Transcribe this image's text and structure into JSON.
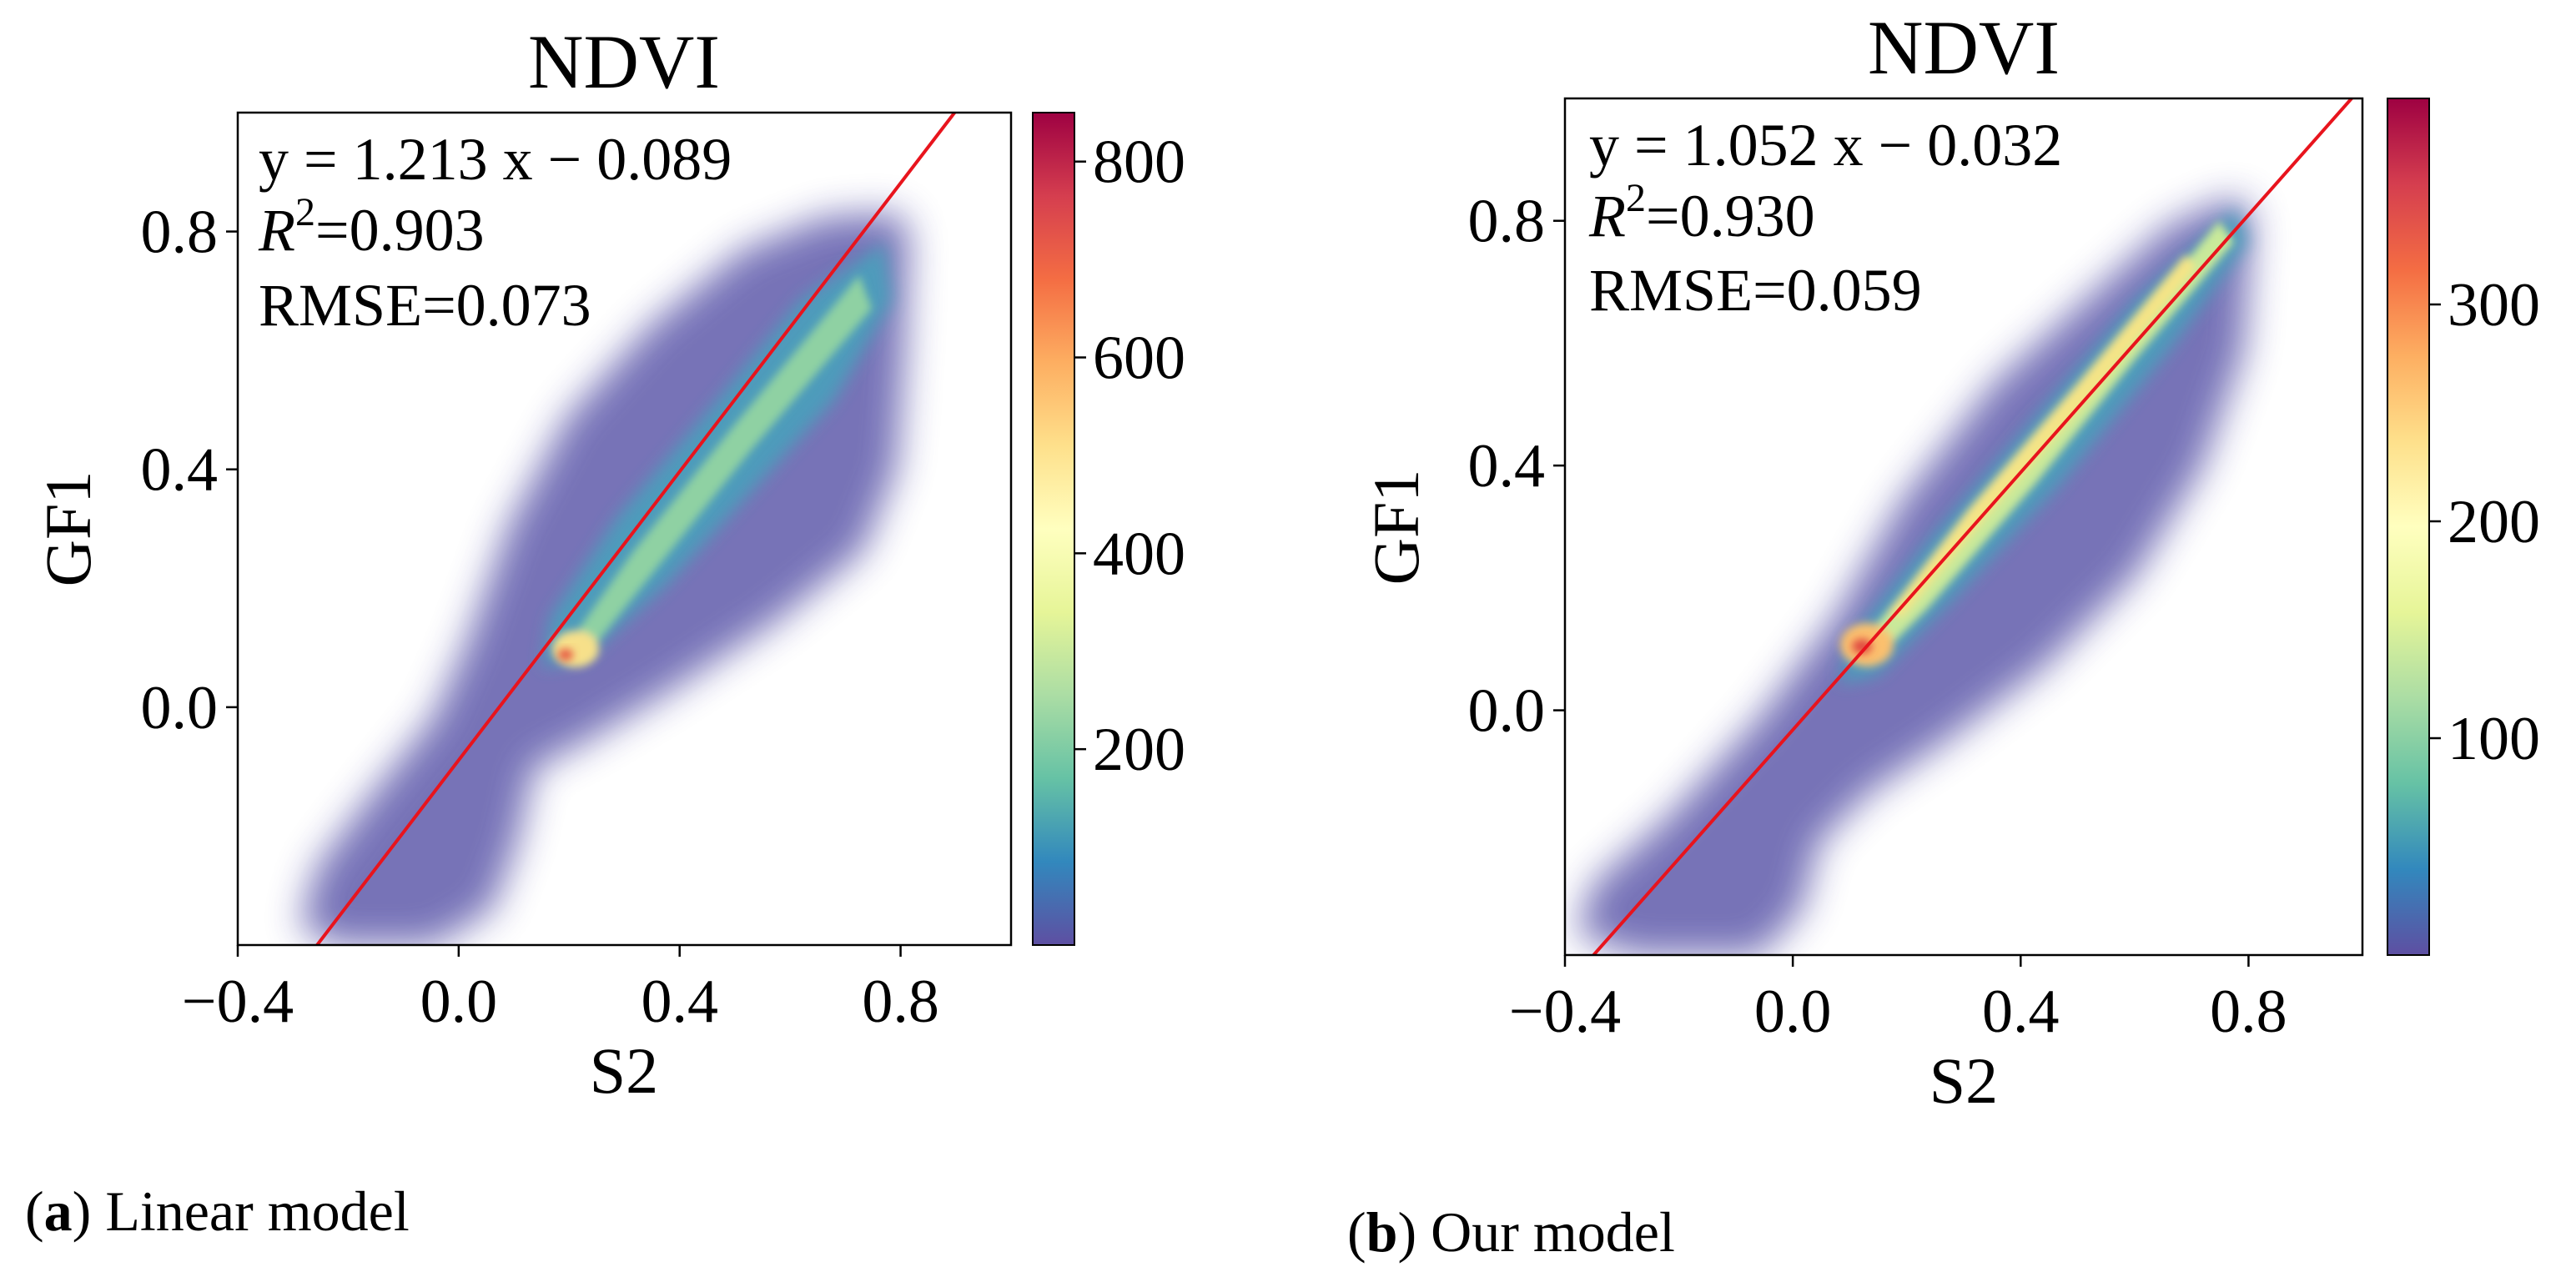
{
  "chart_data": [
    {
      "type": "scatter",
      "subtype": "density-heatmap-scatter",
      "panel_label": "a",
      "caption": "Linear model",
      "title": "NDVI",
      "xlabel": "S2",
      "ylabel": "GF1",
      "xlim": [
        -0.4,
        1.0
      ],
      "ylim": [
        -0.4,
        1.0
      ],
      "xticks": [
        -0.4,
        0.0,
        0.4,
        0.8
      ],
      "xtick_labels": [
        "−0.4",
        "0.0",
        "0.4",
        "0.8"
      ],
      "yticks": [
        0.0,
        0.4,
        0.8
      ],
      "ytick_labels": [
        "0.0",
        "0.4",
        "0.8"
      ],
      "fit": {
        "slope": 1.213,
        "intercept": -0.089
      },
      "annotations": {
        "equation": "y = 1.213 x − 0.089",
        "r2_symbol": "R",
        "r2_exponent": "2",
        "r2_value": "=0.903",
        "rmse": "RMSE=0.073"
      },
      "colorbar": {
        "min": 0,
        "max": 850,
        "ticks": [
          200,
          400,
          600,
          800
        ],
        "tick_labels": [
          "200",
          "400",
          "600",
          "800"
        ],
        "colormap": "Spectral_r"
      },
      "density_peak": {
        "x": 0.15,
        "y": 0.1
      },
      "fit_line_color": "#e8141d"
    },
    {
      "type": "scatter",
      "subtype": "density-heatmap-scatter",
      "panel_label": "b",
      "caption": "Our model",
      "title": "NDVI",
      "xlabel": "S2",
      "ylabel": "GF1",
      "xlim": [
        -0.4,
        1.0
      ],
      "ylim": [
        -0.4,
        1.0
      ],
      "xticks": [
        -0.4,
        0.0,
        0.4,
        0.8
      ],
      "xtick_labels": [
        "−0.4",
        "0.0",
        "0.4",
        "0.8"
      ],
      "yticks": [
        0.0,
        0.4,
        0.8
      ],
      "ytick_labels": [
        "0.0",
        "0.4",
        "0.8"
      ],
      "fit": {
        "slope": 1.052,
        "intercept": -0.032
      },
      "annotations": {
        "equation": "y = 1.052 x − 0.032",
        "r2_symbol": "R",
        "r2_exponent": "2",
        "r2_value": "=0.930",
        "rmse": "RMSE=0.059"
      },
      "colorbar": {
        "min": 0,
        "max": 395,
        "ticks": [
          100,
          200,
          300
        ],
        "tick_labels": [
          "100",
          "200",
          "300"
        ],
        "colormap": "Spectral_r"
      },
      "density_peak": {
        "x": 0.12,
        "y": 0.1
      },
      "fit_line_color": "#e8141d"
    }
  ],
  "colors": {
    "fit_line": "#e8141d",
    "axes": "#000000",
    "background": "#ffffff"
  }
}
